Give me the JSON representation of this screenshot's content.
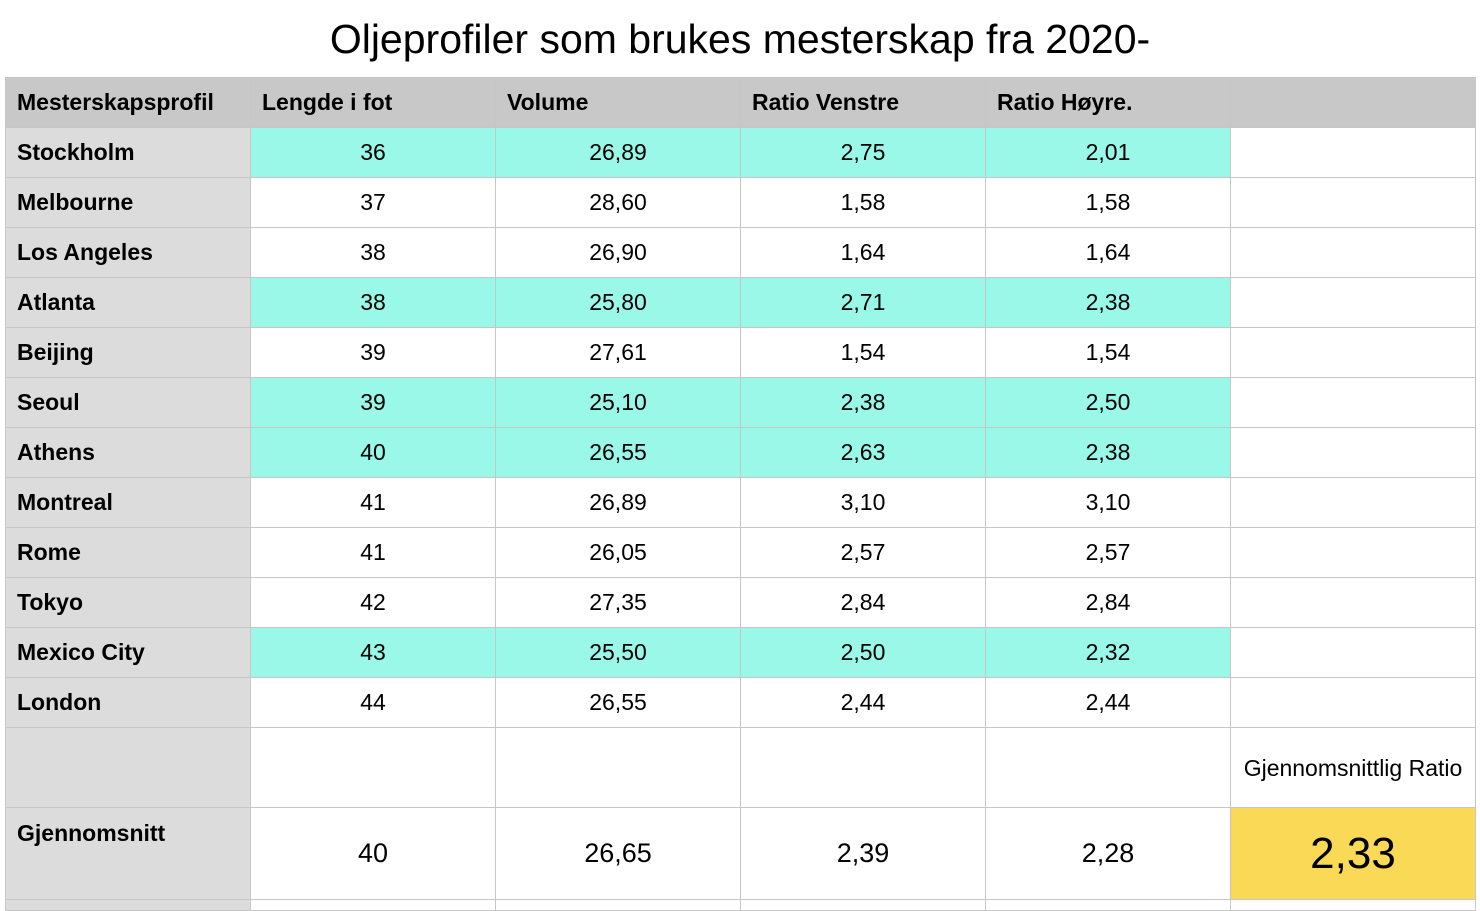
{
  "title": "Oljeprofiler som brukes mesterskap fra 2020-",
  "headers": [
    "Mesterskapsprofil",
    "Lengde i fot",
    "Volume",
    "Ratio Venstre",
    "Ratio Høyre.",
    ""
  ],
  "highlight_color": "#9af8e8",
  "total_color": "#f9d956",
  "rows": [
    {
      "name": "Stockholm",
      "length": "36",
      "volume": "26,89",
      "left": "2,75",
      "right": "2,01",
      "highlight": true
    },
    {
      "name": "Melbourne",
      "length": "37",
      "volume": "28,60",
      "left": "1,58",
      "right": "1,58",
      "highlight": false
    },
    {
      "name": "Los Angeles",
      "length": "38",
      "volume": "26,90",
      "left": "1,64",
      "right": "1,64",
      "highlight": false
    },
    {
      "name": "Atlanta",
      "length": "38",
      "volume": "25,80",
      "left": "2,71",
      "right": "2,38",
      "highlight": true
    },
    {
      "name": "Beijing",
      "length": "39",
      "volume": "27,61",
      "left": "1,54",
      "right": "1,54",
      "highlight": false
    },
    {
      "name": "Seoul",
      "length": "39",
      "volume": "25,10",
      "left": "2,38",
      "right": "2,50",
      "highlight": true
    },
    {
      "name": "Athens",
      "length": "40",
      "volume": "26,55",
      "left": "2,63",
      "right": "2,38",
      "highlight": true
    },
    {
      "name": "Montreal",
      "length": "41",
      "volume": "26,89",
      "left": "3,10",
      "right": "3,10",
      "highlight": false
    },
    {
      "name": "Rome",
      "length": "41",
      "volume": "26,05",
      "left": "2,57",
      "right": "2,57",
      "highlight": false
    },
    {
      "name": "Tokyo",
      "length": "42",
      "volume": "27,35",
      "left": "2,84",
      "right": "2,84",
      "highlight": false
    },
    {
      "name": "Mexico City",
      "length": "43",
      "volume": "25,50",
      "left": "2,50",
      "right": "2,32",
      "highlight": true
    },
    {
      "name": "London",
      "length": "44",
      "volume": "26,55",
      "left": "2,44",
      "right": "2,44",
      "highlight": false
    }
  ],
  "avg_ratio_label": "Gjennomsnittlig Ratio",
  "average": {
    "name": "Gjennomsnitt",
    "length": "40",
    "volume": "26,65",
    "left": "2,39",
    "right": "2,28",
    "ratio": "2,33"
  }
}
